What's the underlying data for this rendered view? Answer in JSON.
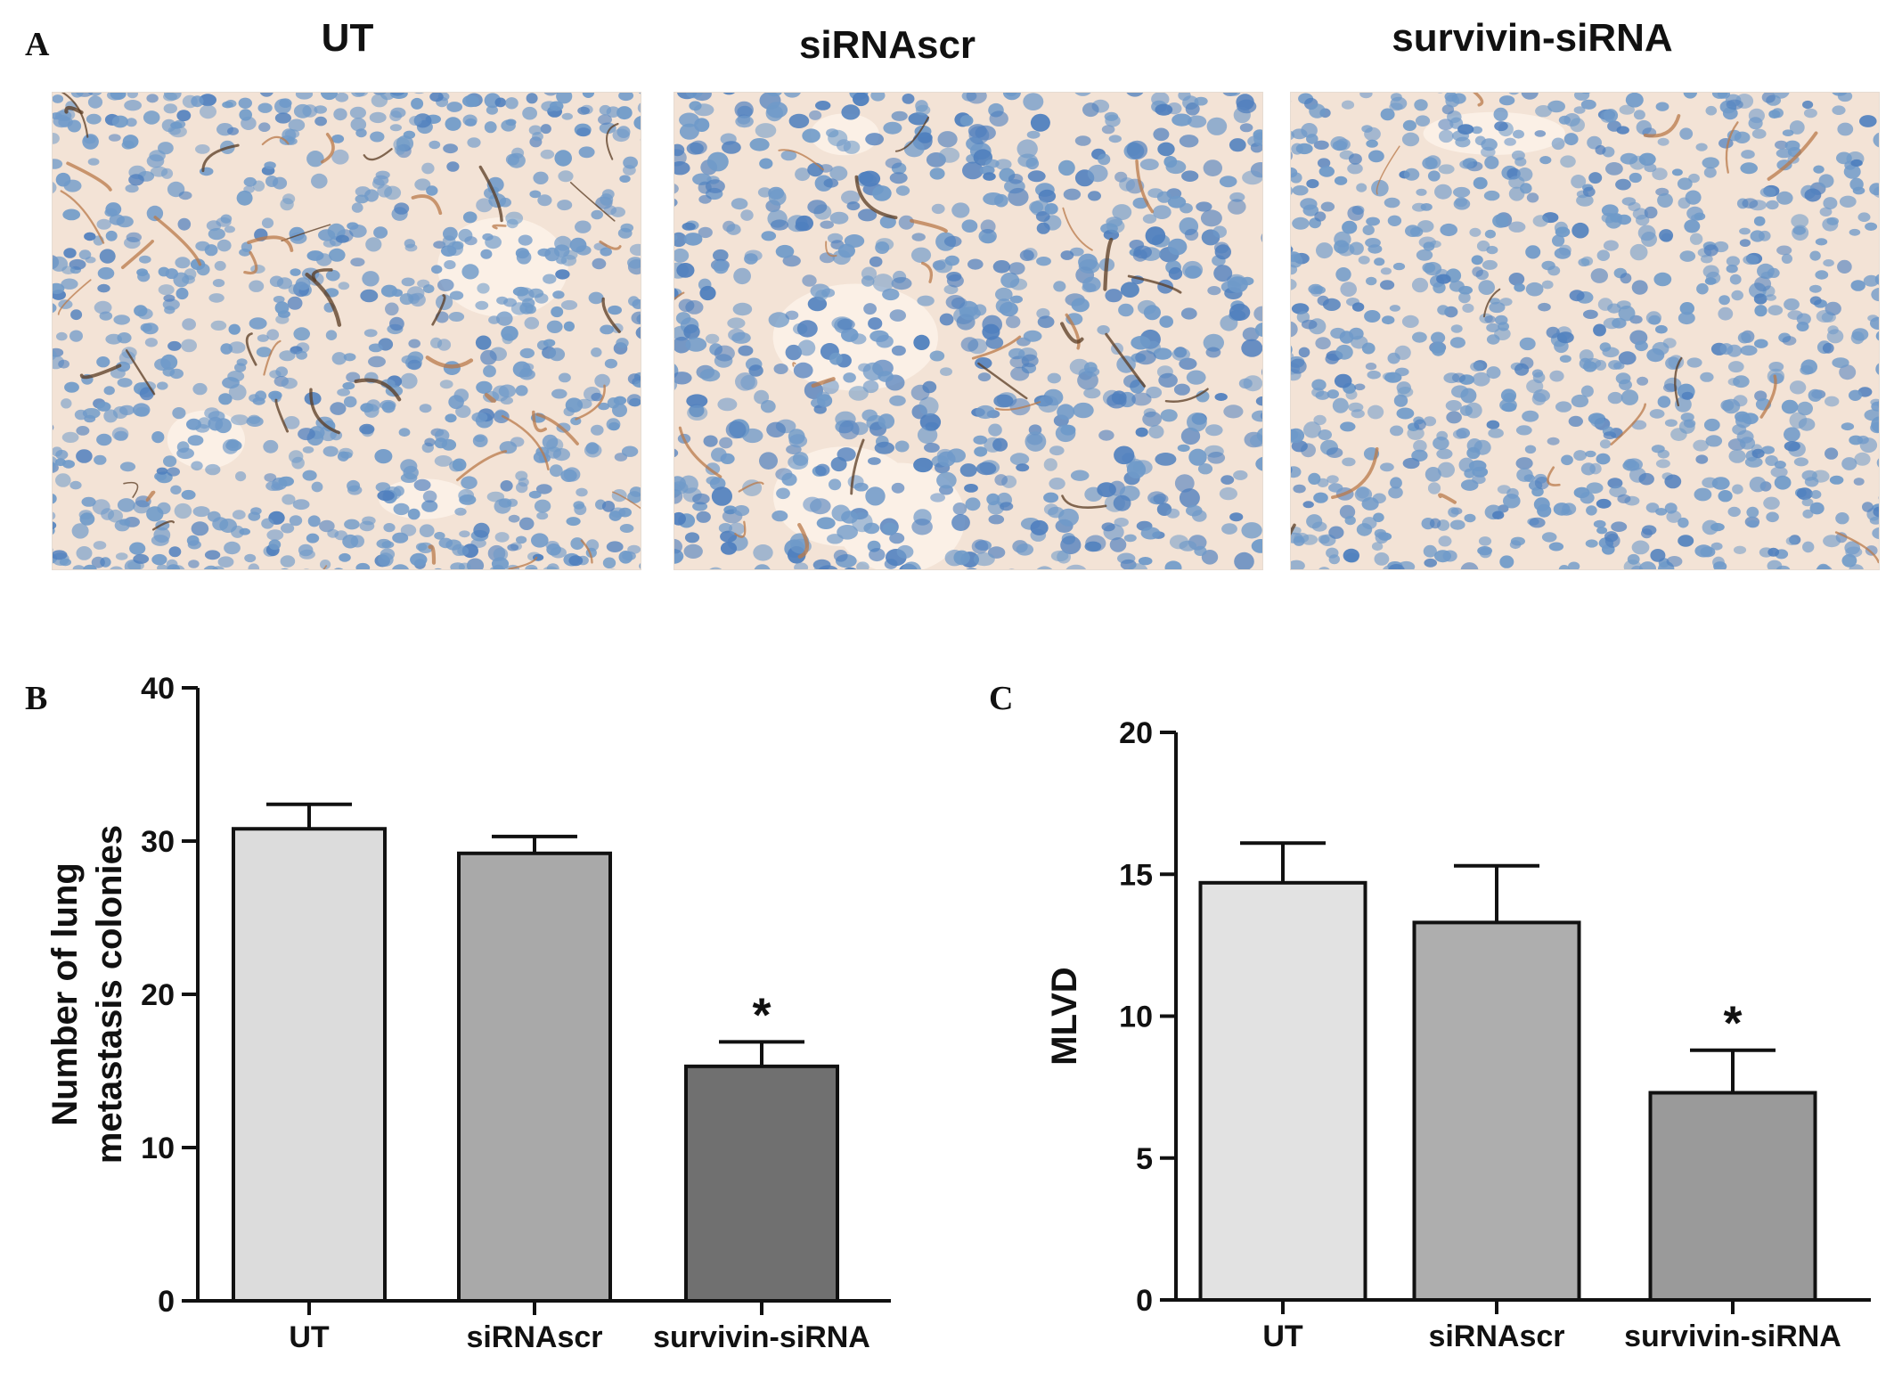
{
  "panel_a": {
    "letter": "A",
    "titles": [
      "UT",
      "siRNAscr",
      "survivin-siRNA"
    ],
    "tissue_colors": {
      "background": "#f3e3d6",
      "nucleus": "#6f9ac9",
      "nucleus_dark": "#4f7fbe",
      "vessel": "#b97a4a",
      "vessel_dark": "#5a3b22",
      "lumen": "#fbf0e6"
    }
  },
  "chart_data": [
    {
      "type": "bar",
      "letter": "B",
      "categories": [
        "UT",
        "siRNAscr",
        "survivin-siRNA"
      ],
      "values": [
        30.8,
        29.2,
        15.3
      ],
      "errors": [
        1.6,
        1.1,
        1.6
      ],
      "ylabel_lines": [
        "Number of lung",
        "metastasis colonies"
      ],
      "ylim": [
        0,
        40
      ],
      "yticks": [
        0,
        10,
        20,
        30,
        40
      ],
      "significance": [
        "",
        "",
        "*"
      ],
      "bar_colors": [
        "#dcdcdc",
        "#a9a9a9",
        "#707070"
      ],
      "grid": false
    },
    {
      "type": "bar",
      "letter": "C",
      "categories": [
        "UT",
        "siRNAscr",
        "survivin-siRNA"
      ],
      "values": [
        14.7,
        13.3,
        7.3
      ],
      "errors": [
        1.4,
        2.0,
        1.5
      ],
      "ylabel_lines": [
        "MLVD"
      ],
      "ylim": [
        0,
        20
      ],
      "yticks": [
        0,
        5,
        10,
        15,
        20
      ],
      "significance": [
        "",
        "",
        "*"
      ],
      "bar_colors": [
        "#e2e2e2",
        "#aeaeae",
        "#9a9a9a"
      ],
      "grid": false
    }
  ]
}
